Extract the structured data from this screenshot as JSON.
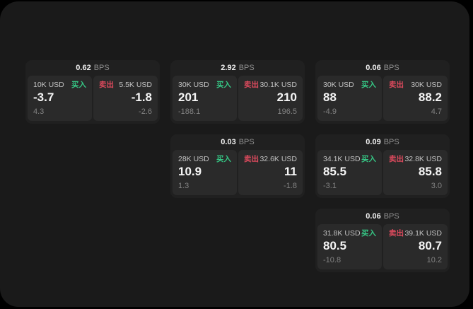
{
  "labels": {
    "buy": "买入",
    "sell": "卖出",
    "unit": "BPS"
  },
  "colors": {
    "buy_green": "#36c785",
    "sell_red": "#dc4a5d",
    "screen_bg": "#1a1a1a",
    "card_bg": "#202020",
    "panel_bg": "#2a2a2a"
  },
  "cards": [
    {
      "bps": "0.62",
      "buy": {
        "amount": "10K USD",
        "price": "-3.7",
        "change": "4.3"
      },
      "sell": {
        "amount": "5.5K USD",
        "price": "-1.8",
        "change": "-2.6"
      }
    },
    {
      "bps": "2.92",
      "buy": {
        "amount": "30K USD",
        "price": "201",
        "change": "-188.1"
      },
      "sell": {
        "amount": "30.1K USD",
        "price": "210",
        "change": "196.5"
      }
    },
    {
      "bps": "0.06",
      "buy": {
        "amount": "30K USD",
        "price": "88",
        "change": "-4.9"
      },
      "sell": {
        "amount": "30K USD",
        "price": "88.2",
        "change": "4.7"
      }
    },
    {
      "bps": "0.03",
      "buy": {
        "amount": "28K USD",
        "price": "10.9",
        "change": "1.3"
      },
      "sell": {
        "amount": "32.6K USD",
        "price": "11",
        "change": "-1.8"
      }
    },
    {
      "bps": "0.09",
      "buy": {
        "amount": "34.1K USD",
        "price": "85.5",
        "change": "-3.1"
      },
      "sell": {
        "amount": "32.8K USD",
        "price": "85.8",
        "change": "3.0"
      }
    },
    {
      "bps": "0.06",
      "buy": {
        "amount": "31.8K USD",
        "price": "80.5",
        "change": "-10.8"
      },
      "sell": {
        "amount": "39.1K USD",
        "price": "80.7",
        "change": "10.2"
      }
    }
  ]
}
